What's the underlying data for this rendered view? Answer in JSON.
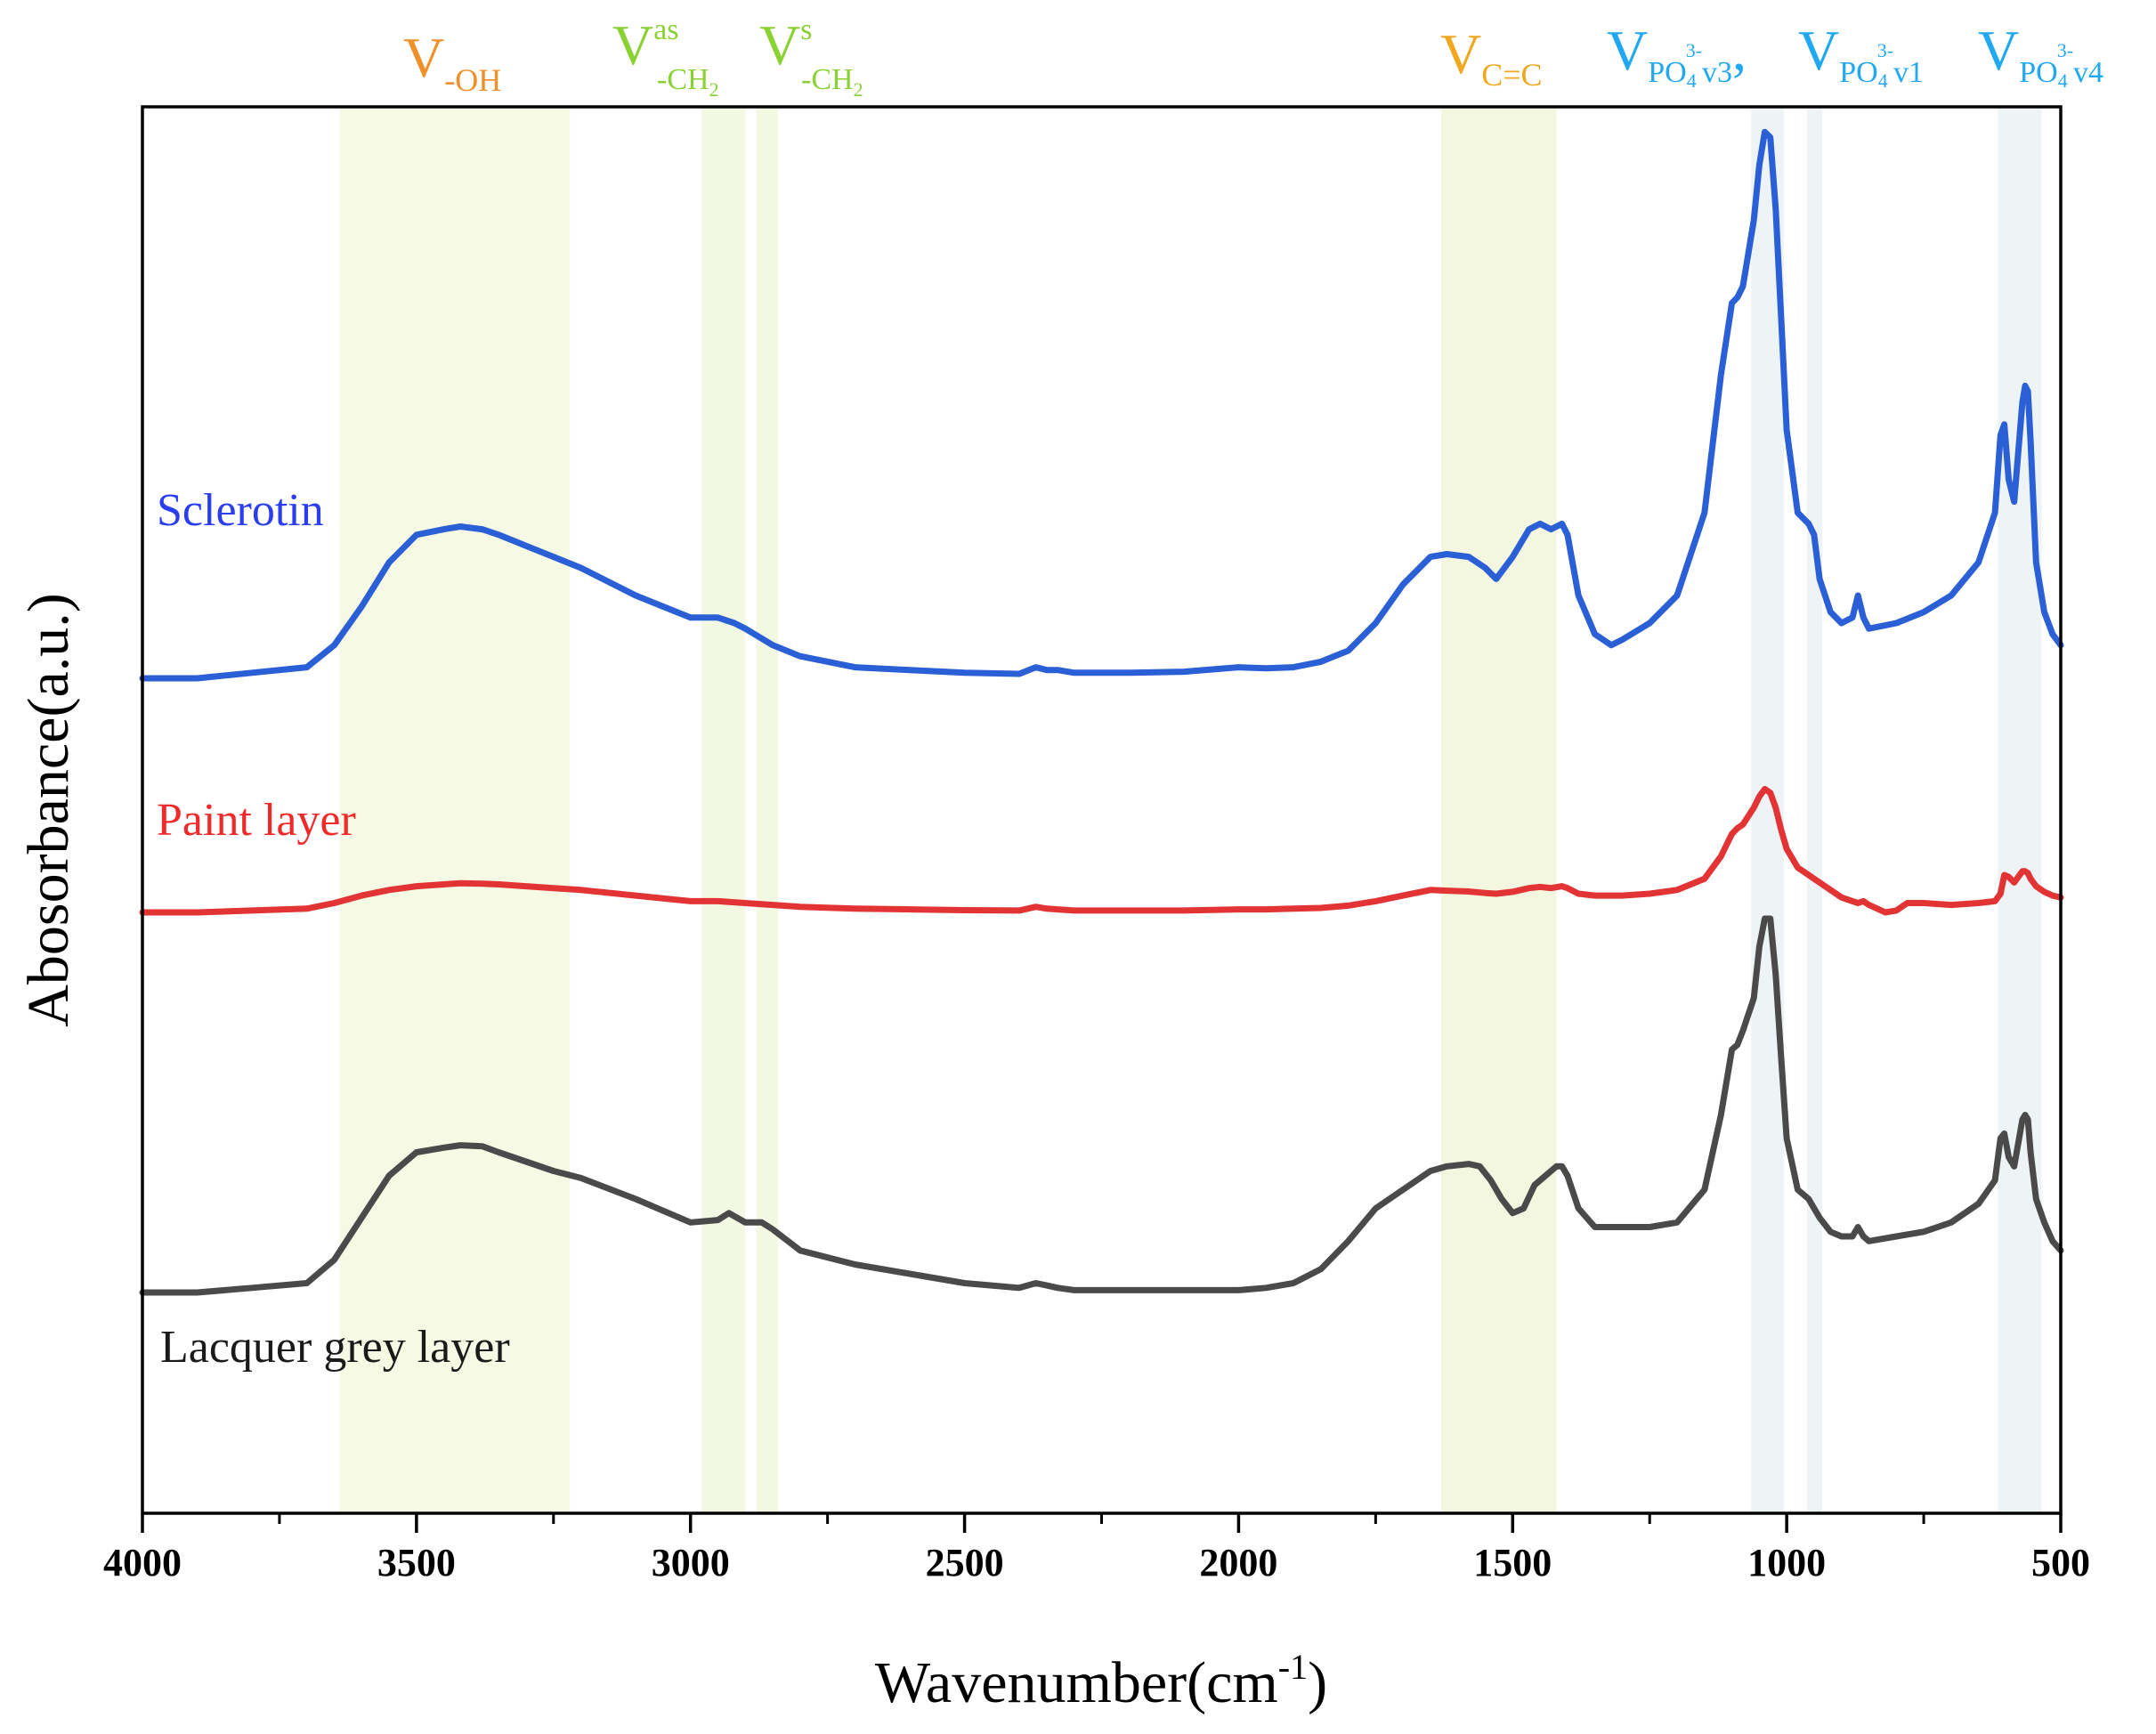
{
  "chart_data": {
    "type": "line",
    "title": "",
    "xlabel": "Wavenumber(cm",
    "xlabel_superscript": "-1",
    "xlabel_close": ")",
    "ylabel": "Abosorbance(a.u.)",
    "xlim": [
      4000,
      500
    ],
    "xticks": [
      4000,
      3500,
      3000,
      2500,
      2000,
      1500,
      1000,
      500
    ],
    "xtick_labels": [
      "4000",
      "3500",
      "3000",
      "2500",
      "2000",
      "1500",
      "1000",
      "500"
    ],
    "grid": false,
    "y_units": "absorbance, arbitrary units (stacked offsets)",
    "series": [
      {
        "name": "Sclerotin",
        "color": "#2a5fd6",
        "label_color": "#2a3ef0",
        "x": [
          4000,
          3900,
          3800,
          3700,
          3650,
          3600,
          3550,
          3500,
          3450,
          3420,
          3380,
          3350,
          3300,
          3250,
          3200,
          3100,
          3000,
          2950,
          2920,
          2900,
          2850,
          2800,
          2700,
          2600,
          2500,
          2400,
          2370,
          2350,
          2330,
          2300,
          2200,
          2100,
          2000,
          1950,
          1900,
          1850,
          1800,
          1750,
          1700,
          1650,
          1620,
          1580,
          1550,
          1530,
          1500,
          1470,
          1450,
          1430,
          1410,
          1400,
          1380,
          1350,
          1320,
          1300,
          1250,
          1200,
          1150,
          1120,
          1100,
          1090,
          1080,
          1060,
          1050,
          1040,
          1030,
          1020,
          1010,
          1000,
          980,
          960,
          950,
          940,
          920,
          900,
          880,
          870,
          860,
          850,
          800,
          750,
          700,
          650,
          620,
          610,
          603,
          595,
          585,
          570,
          565,
          560,
          555,
          545,
          530,
          515,
          500
        ],
        "y": [
          0.0,
          0.0,
          0.01,
          0.02,
          0.06,
          0.13,
          0.21,
          0.26,
          0.27,
          0.275,
          0.27,
          0.26,
          0.24,
          0.22,
          0.2,
          0.15,
          0.11,
          0.11,
          0.1,
          0.09,
          0.06,
          0.04,
          0.02,
          0.015,
          0.01,
          0.008,
          0.02,
          0.015,
          0.015,
          0.01,
          0.01,
          0.012,
          0.02,
          0.018,
          0.02,
          0.03,
          0.05,
          0.1,
          0.17,
          0.22,
          0.225,
          0.22,
          0.2,
          0.18,
          0.22,
          0.27,
          0.28,
          0.27,
          0.28,
          0.26,
          0.15,
          0.08,
          0.06,
          0.07,
          0.1,
          0.15,
          0.3,
          0.55,
          0.68,
          0.69,
          0.71,
          0.83,
          0.93,
          0.99,
          0.98,
          0.85,
          0.65,
          0.45,
          0.3,
          0.28,
          0.26,
          0.18,
          0.12,
          0.1,
          0.11,
          0.15,
          0.11,
          0.09,
          0.1,
          0.12,
          0.15,
          0.21,
          0.3,
          0.44,
          0.46,
          0.36,
          0.32,
          0.5,
          0.53,
          0.52,
          0.43,
          0.21,
          0.12,
          0.08,
          0.06
        ]
      },
      {
        "name": "Paint layer",
        "color": "#e23434",
        "label_color": "#f02a2a",
        "x": [
          4000,
          3900,
          3800,
          3700,
          3650,
          3600,
          3550,
          3500,
          3450,
          3420,
          3380,
          3350,
          3300,
          3250,
          3200,
          3100,
          3000,
          2950,
          2900,
          2850,
          2800,
          2700,
          2600,
          2500,
          2400,
          2370,
          2350,
          2330,
          2300,
          2200,
          2100,
          2000,
          1950,
          1900,
          1850,
          1800,
          1750,
          1700,
          1650,
          1620,
          1580,
          1550,
          1530,
          1500,
          1470,
          1450,
          1430,
          1410,
          1400,
          1380,
          1350,
          1300,
          1250,
          1200,
          1150,
          1120,
          1100,
          1090,
          1080,
          1060,
          1050,
          1040,
          1030,
          1020,
          1010,
          1000,
          980,
          960,
          950,
          940,
          920,
          900,
          880,
          870,
          860,
          850,
          820,
          800,
          780,
          750,
          700,
          650,
          620,
          610,
          603,
          595,
          585,
          570,
          565,
          560,
          555,
          545,
          530,
          515,
          500
        ],
        "y": [
          0.0,
          0.0,
          0.005,
          0.01,
          0.025,
          0.045,
          0.06,
          0.07,
          0.075,
          0.078,
          0.077,
          0.075,
          0.07,
          0.065,
          0.06,
          0.045,
          0.03,
          0.03,
          0.025,
          0.02,
          0.015,
          0.01,
          0.008,
          0.006,
          0.005,
          0.015,
          0.01,
          0.008,
          0.005,
          0.005,
          0.005,
          0.008,
          0.008,
          0.01,
          0.012,
          0.018,
          0.03,
          0.045,
          0.06,
          0.058,
          0.056,
          0.052,
          0.05,
          0.055,
          0.065,
          0.068,
          0.065,
          0.07,
          0.065,
          0.05,
          0.045,
          0.045,
          0.05,
          0.06,
          0.09,
          0.15,
          0.21,
          0.225,
          0.235,
          0.28,
          0.31,
          0.33,
          0.32,
          0.28,
          0.22,
          0.17,
          0.12,
          0.1,
          0.09,
          0.08,
          0.06,
          0.04,
          0.03,
          0.025,
          0.03,
          0.02,
          0.0,
          0.005,
          0.025,
          0.025,
          0.02,
          0.025,
          0.03,
          0.05,
          0.1,
          0.095,
          0.08,
          0.11,
          0.11,
          0.105,
          0.09,
          0.07,
          0.055,
          0.045,
          0.04
        ]
      },
      {
        "name": "Lacquer grey layer",
        "color": "#4a4a4a",
        "label_color": "#1a1a1a",
        "x": [
          4000,
          3900,
          3800,
          3700,
          3650,
          3600,
          3550,
          3500,
          3450,
          3420,
          3380,
          3350,
          3300,
          3250,
          3200,
          3100,
          3000,
          2950,
          2930,
          2900,
          2870,
          2850,
          2800,
          2700,
          2600,
          2500,
          2400,
          2370,
          2350,
          2330,
          2300,
          2200,
          2100,
          2000,
          1950,
          1900,
          1850,
          1800,
          1750,
          1700,
          1650,
          1620,
          1580,
          1560,
          1540,
          1520,
          1500,
          1480,
          1460,
          1440,
          1420,
          1410,
          1400,
          1380,
          1350,
          1300,
          1250,
          1200,
          1150,
          1120,
          1100,
          1090,
          1080,
          1060,
          1050,
          1040,
          1030,
          1020,
          1010,
          1000,
          980,
          960,
          950,
          940,
          920,
          900,
          880,
          870,
          860,
          850,
          800,
          750,
          700,
          650,
          620,
          610,
          603,
          595,
          585,
          570,
          565,
          560,
          555,
          545,
          530,
          515,
          500
        ],
        "y": [
          0.0,
          0.0,
          0.01,
          0.02,
          0.07,
          0.16,
          0.25,
          0.3,
          0.31,
          0.315,
          0.313,
          0.3,
          0.28,
          0.26,
          0.245,
          0.2,
          0.15,
          0.155,
          0.17,
          0.15,
          0.15,
          0.135,
          0.09,
          0.06,
          0.04,
          0.02,
          0.01,
          0.02,
          0.015,
          0.01,
          0.005,
          0.005,
          0.005,
          0.005,
          0.01,
          0.02,
          0.05,
          0.11,
          0.18,
          0.22,
          0.26,
          0.27,
          0.275,
          0.27,
          0.24,
          0.2,
          0.17,
          0.18,
          0.23,
          0.25,
          0.27,
          0.27,
          0.25,
          0.18,
          0.14,
          0.14,
          0.14,
          0.15,
          0.22,
          0.38,
          0.52,
          0.53,
          0.56,
          0.63,
          0.74,
          0.8,
          0.8,
          0.68,
          0.5,
          0.33,
          0.22,
          0.2,
          0.18,
          0.16,
          0.13,
          0.12,
          0.12,
          0.14,
          0.12,
          0.11,
          0.12,
          0.13,
          0.15,
          0.19,
          0.24,
          0.33,
          0.34,
          0.29,
          0.27,
          0.37,
          0.38,
          0.37,
          0.3,
          0.2,
          0.15,
          0.11,
          0.09
        ]
      }
    ],
    "bands": [
      {
        "name": "-OH",
        "from": 3640,
        "to": 3220,
        "color": "#f6f9e4"
      },
      {
        "name": "as -CH2",
        "from": 2980,
        "to": 2900,
        "color": "#f3f8e2"
      },
      {
        "name": "s -CH2",
        "from": 2880,
        "to": 2840,
        "color": "#f3f8e2"
      },
      {
        "name": "C=C",
        "from": 1630,
        "to": 1420,
        "color": "#f3f7e0"
      },
      {
        "name": "PO4 v3",
        "from": 1065,
        "to": 1005,
        "color": "#eef4f5"
      },
      {
        "name": "PO4 v1",
        "from": 963,
        "to": 935,
        "color": "#eef4f5"
      },
      {
        "name": "PO4 v4",
        "from": 615,
        "to": 535,
        "color": "#eef4f5"
      }
    ],
    "annotations": {
      "v_oh": {
        "main": "V",
        "sub": "-OH",
        "color": "#f0902a"
      },
      "v_ch2_as": {
        "main": "V",
        "sup": "as",
        "sub": "-CH",
        "sub2": "2",
        "color": "#8ad234"
      },
      "v_ch2_s": {
        "main": "V",
        "sup": "s",
        "sub": "-CH",
        "sub2": "2",
        "color": "#8ad234"
      },
      "v_cc": {
        "main": "V",
        "sub": "C=C",
        "color": "#f0a820"
      },
      "v_po4_v3": {
        "main": "V",
        "sub": "PO",
        "sub2": "4",
        "sup": "3-",
        "tail": "v3",
        "sep": ",",
        "color": "#20a8f0"
      },
      "v_po4_v1": {
        "main": "V",
        "sub": "PO",
        "sub2": "4",
        "sup": "3-",
        "tail": "v1",
        "color": "#20a8f0"
      },
      "v_po4_v4": {
        "main": "V",
        "sub": "PO",
        "sub2": "4",
        "sup": "3-",
        "tail": "v4",
        "color": "#20a8f0"
      }
    }
  }
}
